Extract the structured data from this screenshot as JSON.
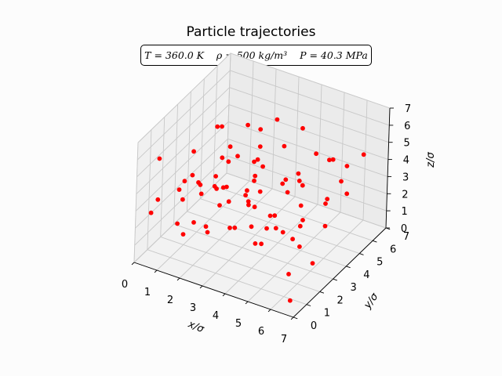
{
  "chart_data": {
    "type": "scatter3d",
    "title": "Particle trajectories",
    "annotation": {
      "T": "T = 360.0 K",
      "rho": "ρ = 500 kg/m³",
      "P": "P = 40.3 MPa"
    },
    "xlabel": "x/σ",
    "ylabel": "y/σ",
    "zlabel": "z/σ",
    "xlim": [
      0,
      7
    ],
    "ylim": [
      0,
      7
    ],
    "zlim": [
      0,
      7
    ],
    "xticks": [
      "0",
      "1",
      "2",
      "3",
      "4",
      "5",
      "6",
      "7"
    ],
    "yticks": [
      "0",
      "1",
      "2",
      "3",
      "4",
      "5",
      "6",
      "7"
    ],
    "zticks": [
      "0",
      "1",
      "2",
      "3",
      "4",
      "5",
      "6",
      "7"
    ],
    "grid": true,
    "marker_color": "#ff0000",
    "points": [
      [
        6.5,
        0.6,
        0.3
      ],
      [
        5.9,
        1.5,
        0.9
      ],
      [
        1.7,
        1.5,
        2.0
      ],
      [
        3.3,
        0.6,
        4.4
      ],
      [
        6.2,
        5.3,
        2.9
      ],
      [
        0.9,
        5.6,
        3.0
      ],
      [
        4.5,
        1.8,
        1.8
      ],
      [
        2.2,
        2.3,
        3.6
      ],
      [
        5.5,
        6.5,
        3.3
      ],
      [
        3.0,
        6.0,
        1.5
      ],
      [
        0.4,
        4.1,
        1.8
      ],
      [
        3.6,
        2.6,
        1.8
      ],
      [
        1.6,
        3.9,
        2.2
      ],
      [
        4.1,
        1.9,
        3.7
      ],
      [
        6.5,
        1.2,
        3.0
      ],
      [
        2.8,
        6.6,
        1.2
      ],
      [
        0.8,
        1.9,
        3.2
      ],
      [
        5.2,
        4.6,
        5.3
      ],
      [
        1.1,
        1.3,
        1.8
      ],
      [
        4.6,
        4.8,
        1.0
      ],
      [
        2.3,
        5.4,
        4.8
      ],
      [
        4.0,
        5.7,
        0.9
      ],
      [
        0.2,
        5.8,
        3.7
      ],
      [
        5.5,
        3.0,
        2.4
      ],
      [
        3.8,
        0.2,
        6.0
      ],
      [
        1.5,
        3.4,
        2.6
      ],
      [
        6.0,
        4.5,
        5.4
      ],
      [
        2.7,
        0.8,
        2.4
      ],
      [
        0.5,
        0.8,
        3.3
      ],
      [
        4.4,
        3.9,
        3.2
      ],
      [
        3.4,
        4.7,
        6.4
      ],
      [
        1.3,
        6.2,
        4.0
      ],
      [
        5.6,
        0.8,
        4.7
      ],
      [
        2.4,
        2.8,
        4.9
      ],
      [
        0.6,
        3.3,
        4.3
      ],
      [
        4.7,
        3.1,
        1.6
      ],
      [
        3.3,
        2.7,
        3.7
      ],
      [
        1.8,
        0.4,
        4.2
      ],
      [
        6.6,
        5.8,
        5.0
      ],
      [
        2.6,
        4.1,
        1.7
      ],
      [
        5.0,
        6.0,
        3.8
      ],
      [
        0.7,
        4.9,
        1.7
      ],
      [
        4.3,
        1.5,
        5.9
      ],
      [
        2.9,
        4.6,
        3.5
      ],
      [
        1.4,
        4.0,
        5.6
      ],
      [
        5.8,
        1.9,
        2.6
      ],
      [
        3.4,
        3.3,
        0.2
      ],
      [
        0.7,
        2.5,
        0.1
      ],
      [
        4.9,
        3.8,
        4.6
      ],
      [
        2.2,
        5.6,
        3.6
      ],
      [
        3.9,
        3.5,
        1.9
      ],
      [
        1.9,
        5.7,
        2.5
      ],
      [
        5.6,
        2.9,
        4.9
      ],
      [
        0.3,
        3.2,
        2.5
      ],
      [
        4.6,
        0.9,
        6.2
      ],
      [
        2.3,
        0.2,
        6.0
      ],
      [
        3.3,
        5.5,
        4.2
      ],
      [
        1.3,
        4.9,
        0.5
      ],
      [
        6.2,
        2.8,
        0.7
      ],
      [
        4.1,
        2.3,
        4.3
      ],
      [
        0.4,
        1.0,
        5.5
      ],
      [
        2.8,
        3.5,
        2.6
      ],
      [
        5.3,
        5.3,
        0.6
      ],
      [
        3.5,
        1.1,
        2.8
      ],
      [
        1.6,
        2.2,
        3.1
      ],
      [
        4.4,
        4.8,
        3.2
      ],
      [
        2.1,
        1.2,
        4.6
      ],
      [
        6.3,
        3.6,
        3.9
      ],
      [
        3.0,
        4.0,
        4.4
      ],
      [
        0.9,
        6.2,
        2.0
      ],
      [
        4.6,
        2.0,
        2.6
      ],
      [
        5.1,
        6.8,
        2.0
      ],
      [
        2.5,
        4.3,
        1.3
      ],
      [
        1.4,
        3.0,
        0.5
      ],
      [
        3.8,
        6.0,
        5.1
      ],
      [
        5.9,
        4.2,
        3.0
      ],
      [
        1.9,
        3.2,
        4.6
      ],
      [
        4.0,
        3.8,
        1.0
      ],
      [
        0.5,
        0.3,
        2.9
      ],
      [
        3.1,
        2.2,
        1.8
      ]
    ]
  }
}
